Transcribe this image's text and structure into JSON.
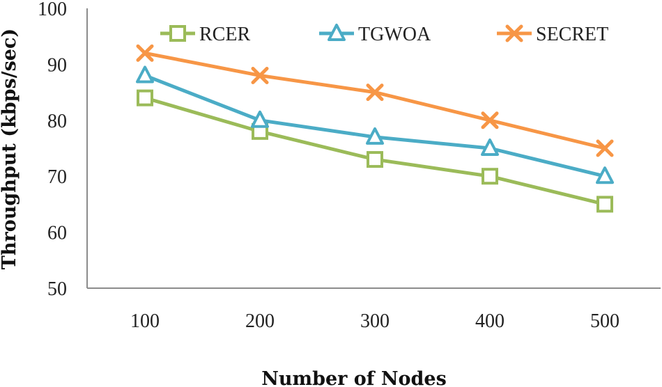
{
  "chart_data": {
    "type": "line",
    "title": "",
    "xlabel": "Number of Nodes",
    "ylabel": "Throughput (kbps/sec)",
    "categories": [
      "100",
      "200",
      "300",
      "400",
      "500"
    ],
    "ylim": [
      50,
      100
    ],
    "yticks": [
      "50",
      "60",
      "70",
      "80",
      "90",
      "100"
    ],
    "grid": false,
    "legend_position": "top",
    "series": [
      {
        "name": "RCER",
        "values": [
          84,
          78,
          73,
          70,
          65
        ],
        "color": "#9bbb59",
        "marker": "square"
      },
      {
        "name": "TGWOA",
        "values": [
          88,
          80,
          77,
          75,
          70
        ],
        "color": "#4bacc6",
        "marker": "triangle"
      },
      {
        "name": "SECRET",
        "values": [
          92,
          88,
          85,
          80,
          75
        ],
        "color": "#f79646",
        "marker": "x"
      }
    ]
  }
}
